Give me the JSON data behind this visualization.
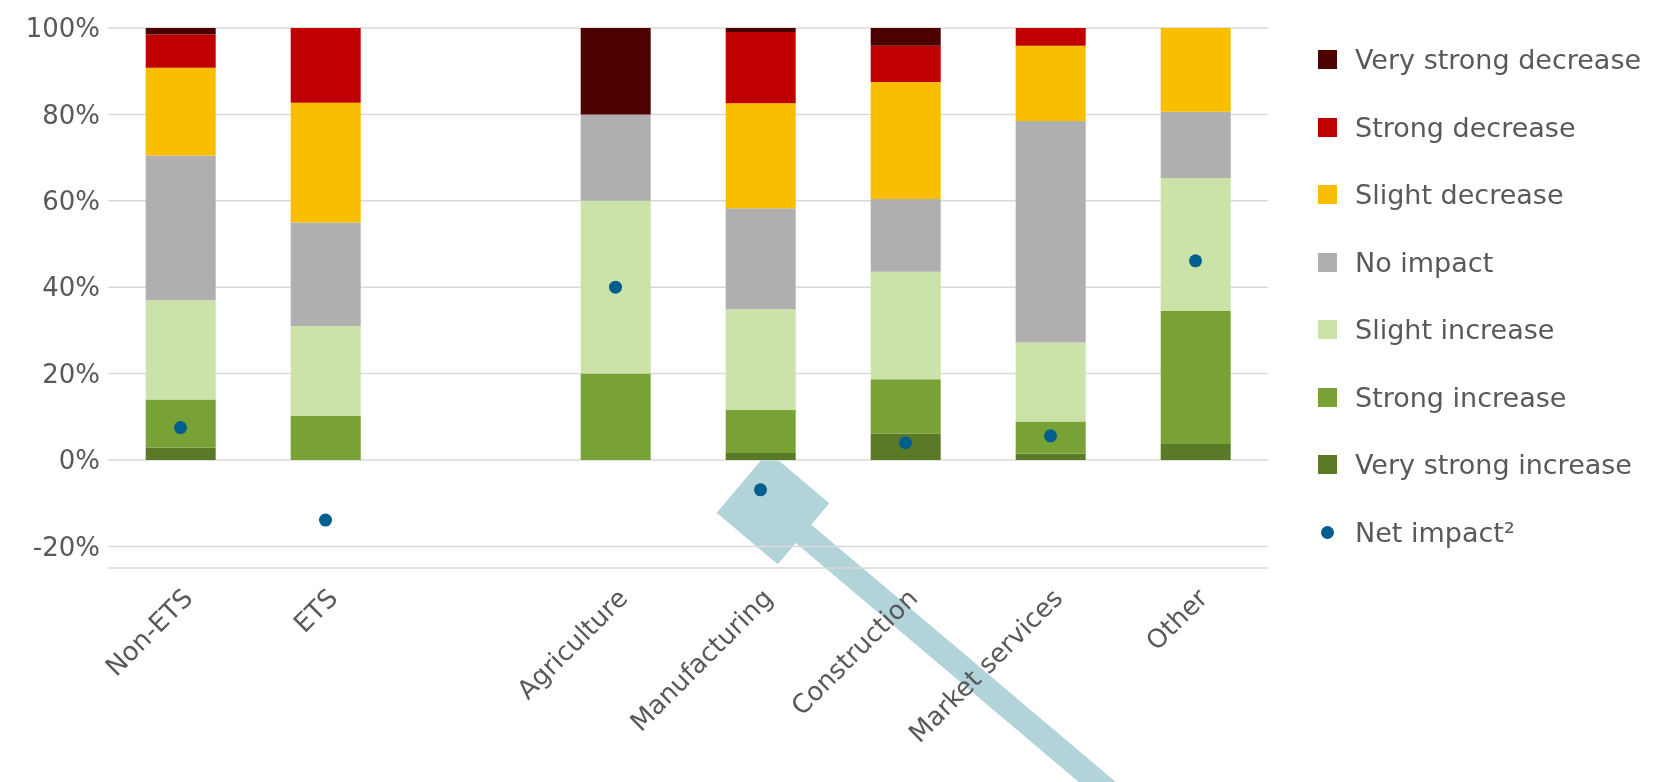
{
  "chart_data": {
    "type": "bar",
    "stacked": true,
    "categories": [
      "Non-ETS",
      "ETS",
      null,
      "Agriculture",
      "Manufacturing",
      "Construction",
      "Market services",
      "Other"
    ],
    "series": [
      {
        "name": "Very strong increase",
        "color": "#5a7a28",
        "values": [
          2.9,
          0,
          null,
          0,
          1.6,
          6.1,
          1.5,
          3.7
        ]
      },
      {
        "name": "Strong increase",
        "color": "#78a136",
        "values": [
          11.1,
          10.2,
          null,
          20,
          10.0,
          12.6,
          7.4,
          30.8
        ]
      },
      {
        "name": "Slight increase",
        "color": "#cbe2a9",
        "values": [
          23.0,
          20.8,
          null,
          40,
          23.3,
          24.9,
          18.3,
          30.8
        ]
      },
      {
        "name": "No impact",
        "color": "#afafaf",
        "values": [
          33.5,
          24.0,
          null,
          20,
          23.4,
          16.8,
          51.3,
          15.3
        ]
      },
      {
        "name": "Slight decrease",
        "color": "#fabe00",
        "values": [
          20.3,
          27.7,
          null,
          0,
          24.3,
          27.1,
          17.4,
          19.4
        ]
      },
      {
        "name": "Strong decrease",
        "color": "#c00000",
        "values": [
          7.7,
          17.3,
          null,
          0,
          16.5,
          8.4,
          4.1,
          0
        ]
      },
      {
        "name": "Very strong decrease",
        "color": "#4d0000",
        "values": [
          1.5,
          0,
          null,
          20,
          0.9,
          4.1,
          0,
          0
        ]
      },
      {
        "name": "Net impact²",
        "type": "scatter",
        "color": "#005f8c",
        "values": [
          7.5,
          -13.9,
          null,
          40,
          -6.9,
          4.0,
          5.6,
          46.1
        ]
      }
    ],
    "ylim": [
      -25,
      100
    ],
    "yticks": [
      {
        "value": -20,
        "label": "-20%"
      },
      {
        "value": 0,
        "label": "0%"
      },
      {
        "value": 20,
        "label": "20%"
      },
      {
        "value": 40,
        "label": "40%"
      },
      {
        "value": 60,
        "label": "60%"
      },
      {
        "value": 80,
        "label": "80%"
      },
      {
        "value": 100,
        "label": "100%"
      }
    ],
    "grid": "y",
    "legend": "right",
    "marker": "circle"
  }
}
